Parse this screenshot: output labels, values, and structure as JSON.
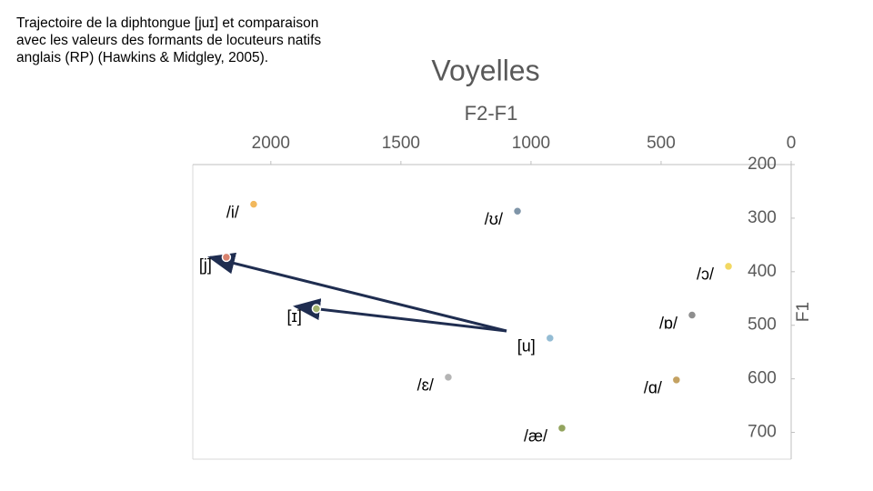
{
  "description": "Trajectoire de la diphtongue [juɪ] et comparaison avec les valeurs des formants de locuteurs natifs anglais (RP) (Hawkins & Midgley, 2005).",
  "chart_data": {
    "type": "scatter",
    "title": "Voyelles",
    "subtitle": "F2-F1",
    "y_label": "F1",
    "xlim": [
      2300,
      0
    ],
    "xticks": [
      2000,
      1500,
      1000,
      500,
      0
    ],
    "ylim": [
      200,
      750
    ],
    "yticks": [
      200,
      300,
      400,
      500,
      600,
      700
    ],
    "series": [
      {
        "name": "/i/",
        "color": "#f2b85c",
        "x": [
          2066
        ],
        "y": [
          274
        ]
      },
      {
        "name": "/ʊ/",
        "color": "#7f95a8",
        "x": [
          1052
        ],
        "y": [
          287
        ]
      },
      {
        "name": "[j]",
        "color": "#d8826e",
        "x": [
          2171
        ],
        "y": [
          373
        ]
      },
      {
        "name": "/ɔ/",
        "color": "#f2d862",
        "x": [
          241
        ],
        "y": [
          390
        ]
      },
      {
        "name": "[ɪ]",
        "color": "#a3b46e",
        "x": [
          1825
        ],
        "y": [
          469
        ]
      },
      {
        "name": "/ɒ/",
        "color": "#8e8e8e",
        "x": [
          381
        ],
        "y": [
          481
        ]
      },
      {
        "name": "[u]",
        "color": "#94bcd4",
        "x": [
          927
        ],
        "y": [
          524
        ]
      },
      {
        "name": "/ɛ/",
        "color": "#b4b4b4",
        "x": [
          1318
        ],
        "y": [
          597
        ]
      },
      {
        "name": "/ɑ/",
        "color": "#c4a262",
        "x": [
          441
        ],
        "y": [
          602
        ]
      },
      {
        "name": "/æ/",
        "color": "#93a45e",
        "x": [
          881
        ],
        "y": [
          692
        ]
      }
    ]
  }
}
